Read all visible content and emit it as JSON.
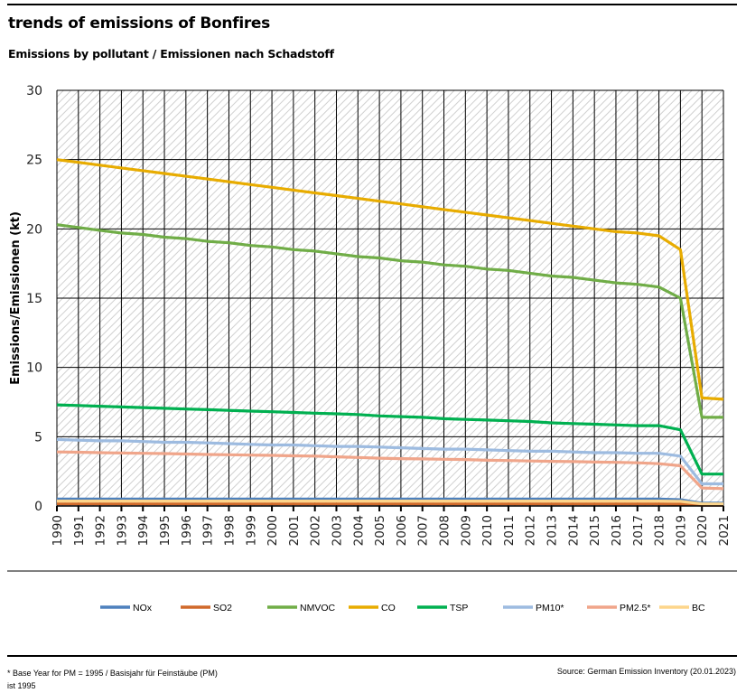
{
  "header": {
    "title": "trends of emissions of Bonfires",
    "subtitle": "Emissions by pollutant / Emissionen nach Schadstoff"
  },
  "footer": {
    "footnote": "* Base Year for PM = 1995 / Basisjahr für Feinstäube (PM) ist 1995",
    "source": "Source: German Emission Inventory (20.01.2023)"
  },
  "chart_data": {
    "type": "line",
    "title": "trends of emissions of Bonfires",
    "subtitle": "Emissions by pollutant / Emissionen nach Schadstoff",
    "xlabel": "",
    "ylabel": "Emissions/Emissionen (kt)",
    "ylim": [
      0,
      30
    ],
    "yticks": [
      0,
      5,
      10,
      15,
      20,
      25,
      30
    ],
    "grid": true,
    "legend_position": "bottom",
    "x": [
      "1990",
      "1991",
      "1992",
      "1993",
      "1994",
      "1995",
      "1996",
      "1997",
      "1998",
      "1999",
      "2000",
      "2001",
      "2002",
      "2003",
      "2004",
      "2005",
      "2006",
      "2007",
      "2008",
      "2009",
      "2010",
      "2011",
      "2012",
      "2013",
      "2014",
      "2015",
      "2016",
      "2017",
      "2018",
      "2019",
      "2020",
      "2021"
    ],
    "series": [
      {
        "name": "NOx",
        "color": "#4e81bd",
        "values": [
          0.5,
          0.5,
          0.5,
          0.5,
          0.5,
          0.5,
          0.5,
          0.5,
          0.5,
          0.5,
          0.5,
          0.5,
          0.5,
          0.5,
          0.5,
          0.5,
          0.5,
          0.5,
          0.5,
          0.5,
          0.5,
          0.5,
          0.5,
          0.5,
          0.5,
          0.5,
          0.5,
          0.5,
          0.5,
          0.45,
          0.2,
          0.2
        ]
      },
      {
        "name": "SO2",
        "color": "#d0692a",
        "values": [
          0.15,
          0.15,
          0.15,
          0.15,
          0.15,
          0.15,
          0.15,
          0.15,
          0.15,
          0.15,
          0.15,
          0.15,
          0.15,
          0.15,
          0.15,
          0.15,
          0.15,
          0.15,
          0.15,
          0.15,
          0.15,
          0.15,
          0.15,
          0.15,
          0.15,
          0.15,
          0.15,
          0.15,
          0.15,
          0.13,
          0.05,
          0.05
        ]
      },
      {
        "name": "NMVOC",
        "color": "#70ad47",
        "values": [
          20.3,
          20.1,
          19.9,
          19.7,
          19.6,
          19.4,
          19.3,
          19.1,
          19.0,
          18.8,
          18.7,
          18.5,
          18.4,
          18.2,
          18.0,
          17.9,
          17.7,
          17.6,
          17.4,
          17.3,
          17.1,
          17.0,
          16.8,
          16.6,
          16.5,
          16.3,
          16.1,
          16.0,
          15.8,
          15.0,
          6.4,
          6.4
        ]
      },
      {
        "name": "CO",
        "color": "#e8ac00",
        "values": [
          25.0,
          24.8,
          24.6,
          24.4,
          24.2,
          24.0,
          23.8,
          23.6,
          23.4,
          23.2,
          23.0,
          22.8,
          22.6,
          22.4,
          22.2,
          22.0,
          21.8,
          21.6,
          21.4,
          21.2,
          21.0,
          20.8,
          20.6,
          20.4,
          20.2,
          20.0,
          19.8,
          19.7,
          19.5,
          18.5,
          7.8,
          7.7
        ]
      },
      {
        "name": "TSP",
        "color": "#00b050",
        "values": [
          7.3,
          7.25,
          7.2,
          7.15,
          7.1,
          7.05,
          7.0,
          6.95,
          6.9,
          6.85,
          6.8,
          6.75,
          6.7,
          6.65,
          6.6,
          6.5,
          6.45,
          6.4,
          6.3,
          6.25,
          6.2,
          6.15,
          6.1,
          6.0,
          5.95,
          5.9,
          5.85,
          5.8,
          5.8,
          5.5,
          2.3,
          2.3
        ]
      },
      {
        "name": "PM10*",
        "color": "#9dbbe0",
        "values": [
          4.8,
          4.75,
          4.7,
          4.7,
          4.65,
          4.6,
          4.6,
          4.55,
          4.5,
          4.45,
          4.4,
          4.4,
          4.35,
          4.3,
          4.3,
          4.25,
          4.2,
          4.15,
          4.1,
          4.1,
          4.05,
          4.0,
          3.95,
          3.95,
          3.9,
          3.85,
          3.85,
          3.8,
          3.8,
          3.6,
          1.6,
          1.6
        ]
      },
      {
        "name": "PM2.5*",
        "color": "#f0a58a",
        "values": [
          3.9,
          3.88,
          3.85,
          3.82,
          3.8,
          3.78,
          3.75,
          3.72,
          3.7,
          3.67,
          3.65,
          3.62,
          3.6,
          3.55,
          3.5,
          3.45,
          3.42,
          3.4,
          3.37,
          3.35,
          3.3,
          3.28,
          3.25,
          3.22,
          3.2,
          3.17,
          3.15,
          3.12,
          3.05,
          2.9,
          1.3,
          1.25
        ]
      },
      {
        "name": "BC",
        "color": "#fdd58b",
        "values": [
          0.35,
          0.35,
          0.35,
          0.35,
          0.35,
          0.35,
          0.35,
          0.35,
          0.35,
          0.35,
          0.35,
          0.35,
          0.35,
          0.35,
          0.35,
          0.35,
          0.35,
          0.35,
          0.35,
          0.35,
          0.35,
          0.35,
          0.35,
          0.35,
          0.35,
          0.35,
          0.35,
          0.35,
          0.35,
          0.33,
          0.15,
          0.15
        ]
      }
    ]
  }
}
